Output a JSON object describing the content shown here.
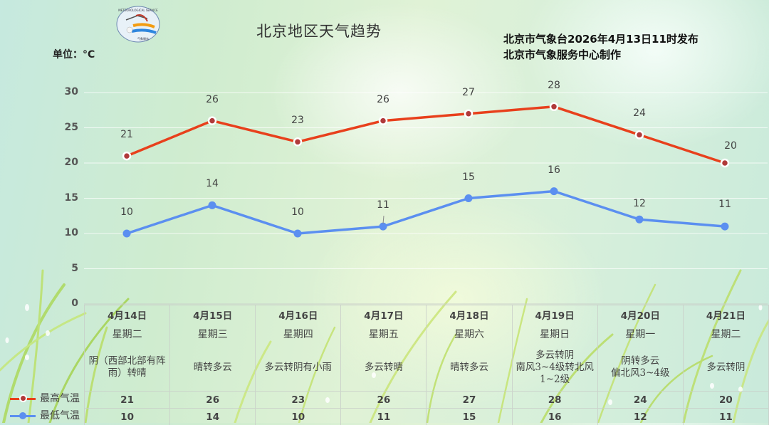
{
  "header": {
    "title": "北京地区天气趋势",
    "issuer_line1": "北京市气象台2026年4月13日11时发布",
    "issuer_line2": "北京市气象服务中心制作",
    "unit": "单位：°C"
  },
  "colors": {
    "high": "#e8401c",
    "low": "#5b8ff0",
    "marker_inner": "#b03a3a"
  },
  "legend": {
    "high": "最高气温",
    "low": "最低气温"
  },
  "days": [
    {
      "date": "4月14日",
      "week": "星期二",
      "desc": "阴（西部北部有阵雨）转晴",
      "hi": "21",
      "lo": "10"
    },
    {
      "date": "4月15日",
      "week": "星期三",
      "desc": "晴转多云",
      "hi": "26",
      "lo": "14"
    },
    {
      "date": "4月16日",
      "week": "星期四",
      "desc": "多云转阴有小雨",
      "hi": "23",
      "lo": "10"
    },
    {
      "date": "4月17日",
      "week": "星期五",
      "desc": "多云转晴",
      "hi": "26",
      "lo": "11"
    },
    {
      "date": "4月18日",
      "week": "星期六",
      "desc": "晴转多云",
      "hi": "27",
      "lo": "15"
    },
    {
      "date": "4月19日",
      "week": "星期日",
      "desc": "多云转阴 南风3~4级转北风1~2级",
      "hi": "28",
      "lo": "16"
    },
    {
      "date": "4月20日",
      "week": "星期一",
      "desc": "阴转多云 偏北风3~4级",
      "hi": "24",
      "lo": "12"
    },
    {
      "date": "4月21日",
      "week": "星期二",
      "desc": "多云转阴",
      "hi": "20",
      "lo": "11"
    }
  ],
  "chart_data": {
    "type": "line",
    "title": "北京地区天气趋势",
    "xlabel": "",
    "ylabel": "单位：°C",
    "ylim": [
      0,
      30
    ],
    "yticks": [
      0,
      5,
      10,
      15,
      20,
      25,
      30
    ],
    "grid": true,
    "legend_position": "bottom-left",
    "categories": [
      "4月14日",
      "4月15日",
      "4月16日",
      "4月17日",
      "4月18日",
      "4月19日",
      "4月20日",
      "4月21日"
    ],
    "series": [
      {
        "name": "最高气温",
        "values": [
          21,
          26,
          23,
          26,
          27,
          28,
          24,
          20
        ],
        "color": "#e8401c"
      },
      {
        "name": "最低气温",
        "values": [
          10,
          14,
          10,
          11,
          15,
          16,
          12,
          11
        ],
        "color": "#5b8ff0"
      }
    ]
  }
}
